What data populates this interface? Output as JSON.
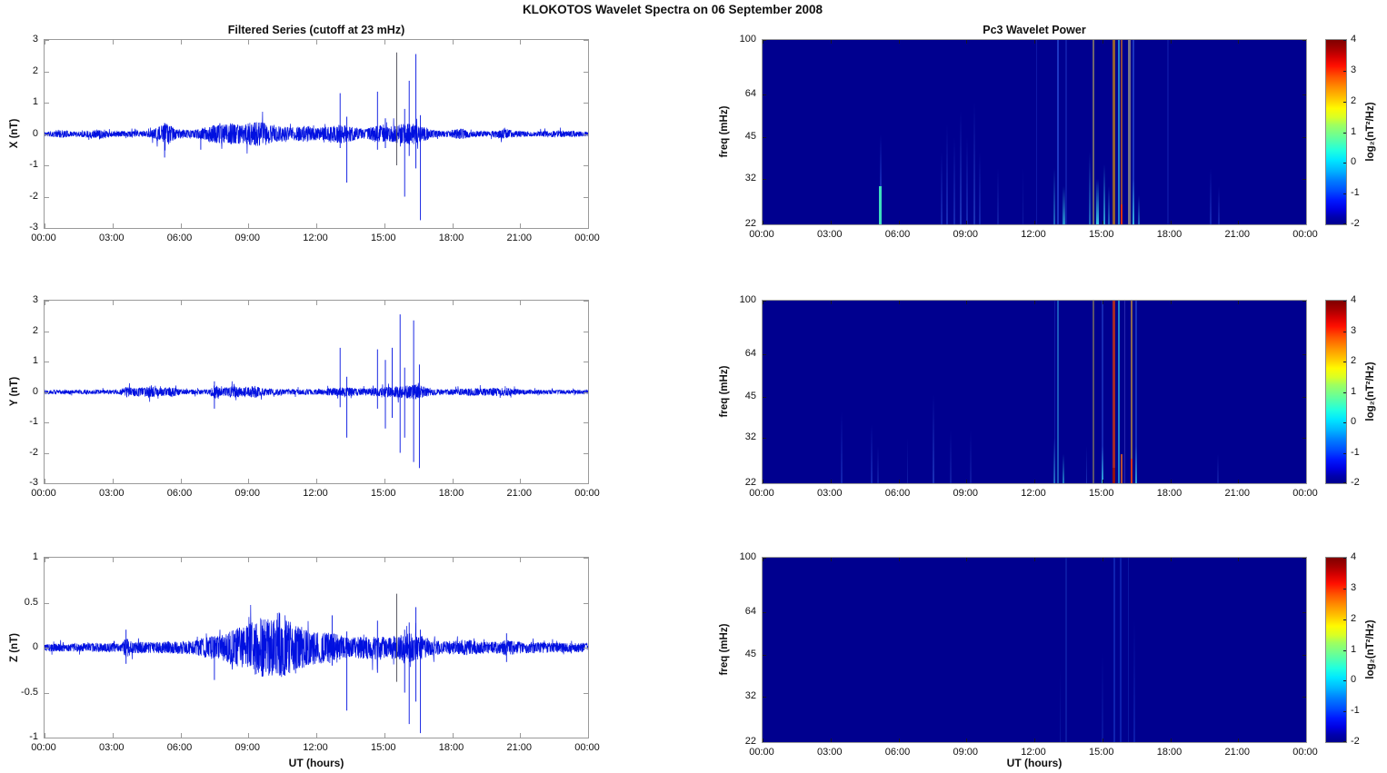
{
  "title": "KLOKOTOS Wavelet Spectra on 06 September 2008",
  "left_title": "Filtered Series (cutoff at 23 mHz)",
  "right_title": "Pc3 Wavelet Power",
  "xlabel": "UT (hours)",
  "time_axis": {
    "range_hours": [
      0,
      24
    ],
    "tick_hours": [
      0,
      3,
      6,
      9,
      12,
      15,
      18,
      21,
      24
    ],
    "tick_labels": [
      "00:00",
      "03:00",
      "06:00",
      "09:00",
      "12:00",
      "15:00",
      "18:00",
      "21:00",
      "00:00"
    ]
  },
  "colorbar": {
    "label": "log₂(nT²/Hz)",
    "tick_values": [
      4,
      3,
      2,
      1,
      0,
      -1,
      -2
    ],
    "range": [
      -2,
      4
    ],
    "colormap": "jet"
  },
  "colors": {
    "series": "#0010e0",
    "spike_dark": "#4a4a55",
    "spec_bg": "#00008f",
    "frame": "#9a9a9a",
    "text": "#111111"
  },
  "chart_data": [
    {
      "type": "line",
      "panel": "timeseries-x",
      "ylabel": "X (nT)",
      "ylim": [
        -3,
        3
      ],
      "yticks": [
        -3,
        -2,
        -1,
        0,
        1,
        2,
        3
      ],
      "xlim_hours": [
        0,
        24
      ],
      "seed": 11,
      "envelope_format": [
        "t_hours",
        "noise_amplitude_nT"
      ],
      "noise_envelope": [
        [
          0,
          0.06
        ],
        [
          0.8,
          0.1
        ],
        [
          1.2,
          0.06
        ],
        [
          2.6,
          0.12
        ],
        [
          3.0,
          0.07
        ],
        [
          4.6,
          0.08
        ],
        [
          5.1,
          0.2
        ],
        [
          5.45,
          0.28
        ],
        [
          5.8,
          0.12
        ],
        [
          6.6,
          0.1
        ],
        [
          7.4,
          0.22
        ],
        [
          8.3,
          0.28
        ],
        [
          8.8,
          0.24
        ],
        [
          9.3,
          0.33
        ],
        [
          9.9,
          0.28
        ],
        [
          10.4,
          0.2
        ],
        [
          11.0,
          0.17
        ],
        [
          11.6,
          0.22
        ],
        [
          12.1,
          0.15
        ],
        [
          12.6,
          0.2
        ],
        [
          13.1,
          0.24
        ],
        [
          13.6,
          0.18
        ],
        [
          14.1,
          0.12
        ],
        [
          14.7,
          0.24
        ],
        [
          15.1,
          0.18
        ],
        [
          15.6,
          0.24
        ],
        [
          16.1,
          0.28
        ],
        [
          16.6,
          0.22
        ],
        [
          17.1,
          0.1
        ],
        [
          17.6,
          0.07
        ],
        [
          18.4,
          0.14
        ],
        [
          18.8,
          0.08
        ],
        [
          19.6,
          0.07
        ],
        [
          20.4,
          0.13
        ],
        [
          20.8,
          0.08
        ],
        [
          21.6,
          0.06
        ],
        [
          22.6,
          0.09
        ],
        [
          24,
          0.06
        ]
      ],
      "spikes_format": [
        "t_hours",
        "max_nT",
        "min_nT",
        "optional_dark_flag"
      ],
      "spikes": [
        [
          5.3,
          0.35,
          -0.75
        ],
        [
          6.9,
          0.1,
          -0.5
        ],
        [
          13.05,
          1.3,
          -0.45
        ],
        [
          13.35,
          0.55,
          -1.55
        ],
        [
          14.7,
          1.35,
          -0.5
        ],
        [
          15.05,
          0.5,
          -0.45
        ],
        [
          15.55,
          2.6,
          -1.0,
          "dark"
        ],
        [
          15.9,
          0.8,
          -2.0
        ],
        [
          16.1,
          1.7,
          -0.7
        ],
        [
          16.4,
          2.55,
          -1.1
        ],
        [
          16.6,
          0.6,
          -2.75
        ]
      ]
    },
    {
      "type": "line",
      "panel": "timeseries-y",
      "ylabel": "Y (nT)",
      "ylim": [
        -3,
        3
      ],
      "yticks": [
        -3,
        -2,
        -1,
        0,
        1,
        2,
        3
      ],
      "xlim_hours": [
        0,
        24
      ],
      "seed": 22,
      "noise_envelope": [
        [
          0,
          0.05
        ],
        [
          3.3,
          0.06
        ],
        [
          3.6,
          0.14
        ],
        [
          4.1,
          0.11
        ],
        [
          4.6,
          0.14
        ],
        [
          5.1,
          0.11
        ],
        [
          5.6,
          0.13
        ],
        [
          6.1,
          0.06
        ],
        [
          7.3,
          0.07
        ],
        [
          7.5,
          0.2
        ],
        [
          7.8,
          0.09
        ],
        [
          8.4,
          0.17
        ],
        [
          8.8,
          0.12
        ],
        [
          9.3,
          0.16
        ],
        [
          9.7,
          0.1
        ],
        [
          10.6,
          0.07
        ],
        [
          12.1,
          0.07
        ],
        [
          12.8,
          0.11
        ],
        [
          13.2,
          0.13
        ],
        [
          14.1,
          0.09
        ],
        [
          15.1,
          0.13
        ],
        [
          15.9,
          0.16
        ],
        [
          16.4,
          0.2
        ],
        [
          16.9,
          0.12
        ],
        [
          17.3,
          0.07
        ],
        [
          18.6,
          0.09
        ],
        [
          20.4,
          0.11
        ],
        [
          21.1,
          0.06
        ],
        [
          24,
          0.05
        ]
      ],
      "spikes": [
        [
          7.5,
          0.35,
          -0.55
        ],
        [
          13.05,
          1.45,
          -0.5
        ],
        [
          13.35,
          0.5,
          -1.5
        ],
        [
          14.7,
          1.4,
          -0.55
        ],
        [
          15.05,
          1.05,
          -1.2
        ],
        [
          15.35,
          1.45,
          -0.85
        ],
        [
          15.7,
          2.55,
          -2.0
        ],
        [
          15.9,
          0.8,
          -1.5
        ],
        [
          16.3,
          2.35,
          -2.3
        ],
        [
          16.55,
          0.9,
          -2.5
        ]
      ]
    },
    {
      "type": "line",
      "panel": "timeseries-z",
      "ylabel": "Z (nT)",
      "ylim": [
        -1,
        1
      ],
      "yticks": [
        -1,
        -0.5,
        0,
        0.5,
        1
      ],
      "xlim_hours": [
        0,
        24
      ],
      "seed": 33,
      "noise_envelope": [
        [
          0,
          0.035
        ],
        [
          3.4,
          0.04
        ],
        [
          3.6,
          0.09
        ],
        [
          3.9,
          0.05
        ],
        [
          5.1,
          0.05
        ],
        [
          6.6,
          0.06
        ],
        [
          7.1,
          0.09
        ],
        [
          7.6,
          0.11
        ],
        [
          8.1,
          0.14
        ],
        [
          8.6,
          0.18
        ],
        [
          9.1,
          0.22
        ],
        [
          9.6,
          0.27
        ],
        [
          10.1,
          0.25
        ],
        [
          10.6,
          0.27
        ],
        [
          11.1,
          0.2
        ],
        [
          11.6,
          0.17
        ],
        [
          12.1,
          0.14
        ],
        [
          12.6,
          0.14
        ],
        [
          13.1,
          0.11
        ],
        [
          13.6,
          0.09
        ],
        [
          14.6,
          0.11
        ],
        [
          15.1,
          0.09
        ],
        [
          15.6,
          0.11
        ],
        [
          16.1,
          0.13
        ],
        [
          16.6,
          0.11
        ],
        [
          17.1,
          0.07
        ],
        [
          17.6,
          0.055
        ],
        [
          18.6,
          0.07
        ],
        [
          19.6,
          0.05
        ],
        [
          20.4,
          0.07
        ],
        [
          21.1,
          0.05
        ],
        [
          24,
          0.04
        ]
      ],
      "spikes": [
        [
          3.6,
          0.2,
          -0.18
        ],
        [
          7.5,
          0.12,
          -0.36
        ],
        [
          12.7,
          0.36,
          -0.2
        ],
        [
          13.35,
          0.18,
          -0.7
        ],
        [
          14.7,
          0.3,
          -0.28
        ],
        [
          15.55,
          0.6,
          -0.38,
          "dark"
        ],
        [
          15.9,
          0.2,
          -0.5
        ],
        [
          16.1,
          0.28,
          -0.85
        ],
        [
          16.4,
          0.45,
          -0.6
        ],
        [
          16.6,
          0.2,
          -0.95
        ],
        [
          20.4,
          0.16,
          -0.16
        ]
      ]
    },
    {
      "type": "heatmap",
      "panel": "wavelet-power-x",
      "ylabel": "freq (mHz)",
      "yscale": "log",
      "freq_lim": [
        22,
        100
      ],
      "yticks": [
        22,
        32,
        45,
        64,
        100
      ],
      "power_log2_range": [
        -2,
        4
      ],
      "events_format": [
        "t_hours",
        "width_px",
        "freq_top_mHz",
        "freq_bottom_mHz",
        "color",
        "opacity",
        "fade_toward_top"
      ],
      "events": [
        [
          12.1,
          1.5,
          100,
          22,
          "#2038c8",
          0.4,
          0
        ],
        [
          13.05,
          2,
          100,
          22,
          "#2a4fd8",
          0.7,
          0
        ],
        [
          13.4,
          1.5,
          100,
          22,
          "#2038c8",
          0.45,
          0
        ],
        [
          14.62,
          2,
          100,
          22,
          "#8a7f66",
          0.8,
          0
        ],
        [
          15.52,
          2.5,
          100,
          22,
          "#a06a28",
          0.9,
          0
        ],
        [
          15.72,
          2,
          100,
          22,
          "#30c8e8",
          0.65,
          0
        ],
        [
          15.85,
          2,
          100,
          22,
          "#c06028",
          0.75,
          0
        ],
        [
          16.2,
          2.5,
          100,
          22,
          "#96917e",
          0.8,
          0
        ],
        [
          16.38,
          2,
          100,
          22,
          "#2a4fd8",
          0.65,
          0
        ],
        [
          17.9,
          1.5,
          100,
          22,
          "#2038c8",
          0.3,
          0
        ],
        [
          5.2,
          2.5,
          30,
          22,
          "#40e8c0",
          0.95,
          0
        ],
        [
          5.2,
          2,
          46,
          30,
          "#2a55dd",
          0.5,
          1
        ],
        [
          7.9,
          2,
          40,
          22,
          "#2a4fd8",
          0.5,
          1
        ],
        [
          8.15,
          2,
          50,
          22,
          "#2a4fd8",
          0.55,
          1
        ],
        [
          8.45,
          2,
          45,
          22,
          "#2a4fd8",
          0.5,
          1
        ],
        [
          8.75,
          2,
          56,
          22,
          "#3058d8",
          0.6,
          1
        ],
        [
          9.05,
          2,
          45,
          22,
          "#2a4fd8",
          0.5,
          1
        ],
        [
          9.35,
          2,
          60,
          22,
          "#3058d8",
          0.55,
          1
        ],
        [
          9.6,
          1.5,
          40,
          22,
          "#2a4fd8",
          0.45,
          1
        ],
        [
          10.4,
          1.5,
          35,
          22,
          "#2845c8",
          0.4,
          1
        ],
        [
          11.5,
          1.5,
          35,
          22,
          "#2845c8",
          0.35,
          1
        ],
        [
          12.9,
          2,
          35,
          22,
          "#30a8e0",
          0.6,
          1
        ],
        [
          13.3,
          2.5,
          30,
          22,
          "#38d0e8",
          0.7,
          1
        ],
        [
          14.45,
          2,
          40,
          22,
          "#30a8e0",
          0.6,
          1
        ],
        [
          14.78,
          3,
          32,
          22,
          "#40dcec",
          0.9,
          1
        ],
        [
          15.1,
          2.5,
          36,
          22,
          "#38c8e8",
          0.8,
          1
        ],
        [
          15.3,
          2,
          30,
          22,
          "#30a8e0",
          0.6,
          1
        ],
        [
          15.85,
          2.5,
          26,
          22,
          "#e03010",
          0.9,
          0
        ],
        [
          16.38,
          2.5,
          32,
          22,
          "#38d0e8",
          0.8,
          1
        ],
        [
          16.6,
          2,
          28,
          22,
          "#30a8e0",
          0.6,
          1
        ],
        [
          19.8,
          2,
          35,
          22,
          "#2a4fd8",
          0.5,
          1
        ],
        [
          20.15,
          2,
          30,
          22,
          "#2a4fd8",
          0.45,
          1
        ]
      ]
    },
    {
      "type": "heatmap",
      "panel": "wavelet-power-y",
      "ylabel": "freq (mHz)",
      "yscale": "log",
      "freq_lim": [
        22,
        100
      ],
      "yticks": [
        22,
        32,
        45,
        64,
        100
      ],
      "power_log2_range": [
        -2,
        4
      ],
      "events": [
        [
          12.9,
          1.5,
          100,
          22,
          "#2038c8",
          0.45,
          0
        ],
        [
          13.05,
          2,
          100,
          22,
          "#30a0e0",
          0.55,
          0
        ],
        [
          14.62,
          2,
          100,
          22,
          "#7a7060",
          0.75,
          0
        ],
        [
          15.0,
          1.5,
          100,
          22,
          "#2a4fd8",
          0.5,
          0
        ],
        [
          15.52,
          2.5,
          100,
          22,
          "#c03018",
          0.85,
          0
        ],
        [
          15.75,
          2,
          100,
          22,
          "#30c8e8",
          0.65,
          0
        ],
        [
          16.0,
          1.5,
          100,
          22,
          "#4848c8",
          0.55,
          0
        ],
        [
          16.3,
          2.5,
          100,
          22,
          "#b08040",
          0.8,
          0
        ],
        [
          16.5,
          2,
          100,
          22,
          "#2a4fd8",
          0.6,
          0
        ],
        [
          3.5,
          2,
          40,
          22,
          "#2a4fd8",
          0.45,
          1
        ],
        [
          4.8,
          2,
          36,
          22,
          "#2a4fd8",
          0.5,
          1
        ],
        [
          5.1,
          1.5,
          30,
          22,
          "#2845c8",
          0.4,
          1
        ],
        [
          6.4,
          1.5,
          32,
          22,
          "#2845c8",
          0.4,
          1
        ],
        [
          7.55,
          2,
          46,
          22,
          "#3058d8",
          0.55,
          1
        ],
        [
          8.3,
          1.5,
          34,
          22,
          "#2845c8",
          0.4,
          1
        ],
        [
          9.2,
          1.5,
          34,
          22,
          "#2845c8",
          0.35,
          1
        ],
        [
          12.9,
          2,
          32,
          22,
          "#30a8e0",
          0.6,
          1
        ],
        [
          13.3,
          2,
          28,
          22,
          "#38d0e8",
          0.6,
          1
        ],
        [
          14.3,
          1.5,
          30,
          22,
          "#3058d8",
          0.5,
          1
        ],
        [
          15.0,
          2.5,
          30,
          22,
          "#38d0e8",
          0.8,
          1
        ],
        [
          15.52,
          2.5,
          25,
          22,
          "#901010",
          0.9,
          0
        ],
        [
          15.85,
          2,
          28,
          22,
          "#e06020",
          0.8,
          0
        ],
        [
          16.3,
          2.5,
          27,
          22,
          "#e03010",
          0.85,
          0
        ],
        [
          16.5,
          2,
          30,
          22,
          "#38c8e8",
          0.7,
          1
        ],
        [
          20.1,
          1.5,
          28,
          22,
          "#2845c8",
          0.4,
          1
        ]
      ]
    },
    {
      "type": "heatmap",
      "panel": "wavelet-power-z",
      "ylabel": "freq (mHz)",
      "yscale": "log",
      "freq_lim": [
        22,
        100
      ],
      "yticks": [
        22,
        32,
        45,
        64,
        100
      ],
      "power_log2_range": [
        -2,
        4
      ],
      "events": [
        [
          13.15,
          1,
          40,
          22,
          "#1530b8",
          0.4,
          1
        ],
        [
          13.4,
          1.5,
          100,
          22,
          "#1530b8",
          0.5,
          0
        ],
        [
          15.0,
          1.5,
          46,
          22,
          "#1530b8",
          0.45,
          1
        ],
        [
          15.55,
          2,
          100,
          22,
          "#1838c8",
          0.6,
          0
        ],
        [
          15.8,
          2,
          100,
          22,
          "#1838c8",
          0.55,
          0
        ],
        [
          16.15,
          1.5,
          100,
          22,
          "#1530b8",
          0.5,
          0
        ],
        [
          16.4,
          2,
          60,
          22,
          "#1838c8",
          0.5,
          1
        ]
      ]
    }
  ]
}
